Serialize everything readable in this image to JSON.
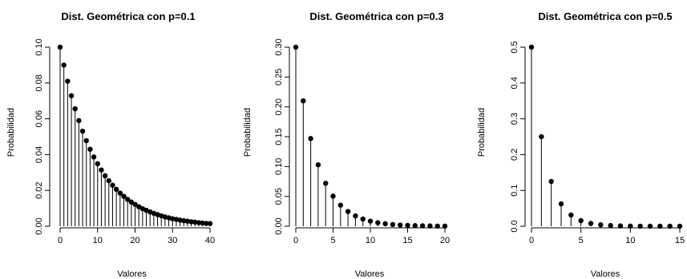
{
  "chart_data": [
    {
      "type": "line",
      "style": "stem-plot",
      "title": "Dist. Geométrica con p=0.1",
      "xlabel": "Valores",
      "ylabel": "Probabilidad",
      "xlim": [
        0,
        40
      ],
      "ylim": [
        0,
        0.1
      ],
      "x_ticks": [
        0,
        10,
        20,
        30,
        40
      ],
      "y_ticks": [
        0.0,
        0.02,
        0.04,
        0.06,
        0.08,
        0.1
      ],
      "y_tick_labels": [
        "0.00",
        "0.02",
        "0.04",
        "0.06",
        "0.08",
        "0.10"
      ],
      "x": [
        0,
        1,
        2,
        3,
        4,
        5,
        6,
        7,
        8,
        9,
        10,
        11,
        12,
        13,
        14,
        15,
        16,
        17,
        18,
        19,
        20,
        21,
        22,
        23,
        24,
        25,
        26,
        27,
        28,
        29,
        30,
        31,
        32,
        33,
        34,
        35,
        36,
        37,
        38,
        39,
        40
      ],
      "values": [
        0.1,
        0.09,
        0.081,
        0.0729,
        0.0656,
        0.059,
        0.0531,
        0.0478,
        0.043,
        0.0387,
        0.0349,
        0.0314,
        0.0282,
        0.0254,
        0.0229,
        0.0206,
        0.0185,
        0.0167,
        0.015,
        0.0135,
        0.0122,
        0.0109,
        0.0098,
        0.0089,
        0.008,
        0.0072,
        0.0065,
        0.0058,
        0.0052,
        0.0047,
        0.0042,
        0.0038,
        0.0034,
        0.0031,
        0.0028,
        0.0025,
        0.0023,
        0.002,
        0.0018,
        0.0016,
        0.0015
      ]
    },
    {
      "type": "line",
      "style": "stem-plot",
      "title": "Dist. Geométrica con p=0.3",
      "xlabel": "Valores",
      "ylabel": "Probabilidad",
      "xlim": [
        0,
        20
      ],
      "ylim": [
        0,
        0.3
      ],
      "x_ticks": [
        0,
        5,
        10,
        15,
        20
      ],
      "y_ticks": [
        0.0,
        0.05,
        0.1,
        0.15,
        0.2,
        0.25,
        0.3
      ],
      "y_tick_labels": [
        "0.00",
        "0.05",
        "0.10",
        "0.15",
        "0.20",
        "0.25",
        "0.30"
      ],
      "x": [
        0,
        1,
        2,
        3,
        4,
        5,
        6,
        7,
        8,
        9,
        10,
        11,
        12,
        13,
        14,
        15,
        16,
        17,
        18,
        19,
        20
      ],
      "values": [
        0.3,
        0.21,
        0.147,
        0.1029,
        0.072,
        0.0504,
        0.0353,
        0.0247,
        0.0173,
        0.0121,
        0.0085,
        0.0059,
        0.0042,
        0.0029,
        0.002,
        0.0014,
        0.001,
        0.0007,
        0.0005,
        0.0003,
        0.0002
      ]
    },
    {
      "type": "line",
      "style": "stem-plot",
      "title": "Dist. Geométrica con p=0.5",
      "xlabel": "Valores",
      "ylabel": "Probabilidad",
      "xlim": [
        0,
        15
      ],
      "ylim": [
        0,
        0.5
      ],
      "x_ticks": [
        0,
        5,
        10,
        15
      ],
      "y_ticks": [
        0.0,
        0.1,
        0.2,
        0.3,
        0.4,
        0.5
      ],
      "y_tick_labels": [
        "0.0",
        "0.1",
        "0.2",
        "0.3",
        "0.4",
        "0.5"
      ],
      "x": [
        0,
        1,
        2,
        3,
        4,
        5,
        6,
        7,
        8,
        9,
        10,
        11,
        12,
        13,
        14,
        15
      ],
      "values": [
        0.5,
        0.25,
        0.125,
        0.0625,
        0.0313,
        0.0156,
        0.0078,
        0.0039,
        0.002,
        0.001,
        0.0005,
        0.0002,
        0.0001,
        0.0001,
        0.0,
        0.0
      ]
    }
  ]
}
